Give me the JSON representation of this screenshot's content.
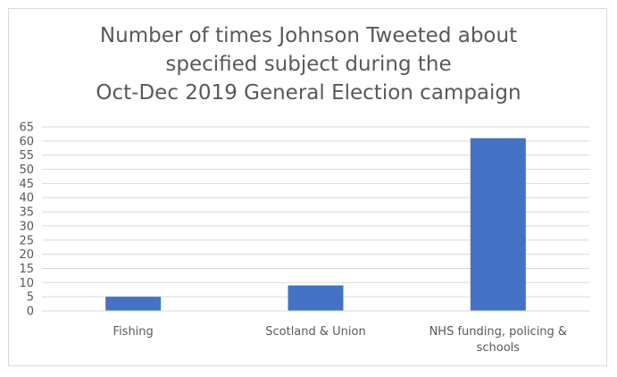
{
  "chart_data": {
    "type": "bar",
    "title_lines": [
      "Number of times Johnson Tweeted about",
      "specified subject during the",
      "Oct-Dec 2019 General Election campaign"
    ],
    "categories": [
      [
        "Fishing"
      ],
      [
        "Scotland & Union"
      ],
      [
        "NHS funding, policing &",
        "schools"
      ]
    ],
    "values": [
      5,
      9,
      61
    ],
    "ylim": [
      0,
      65
    ],
    "yticks": [
      0,
      5,
      10,
      15,
      20,
      25,
      30,
      35,
      40,
      45,
      50,
      55,
      60,
      65
    ],
    "grid": true,
    "bar_color": "#4472c4",
    "grid_color": "#d9d9d9"
  }
}
